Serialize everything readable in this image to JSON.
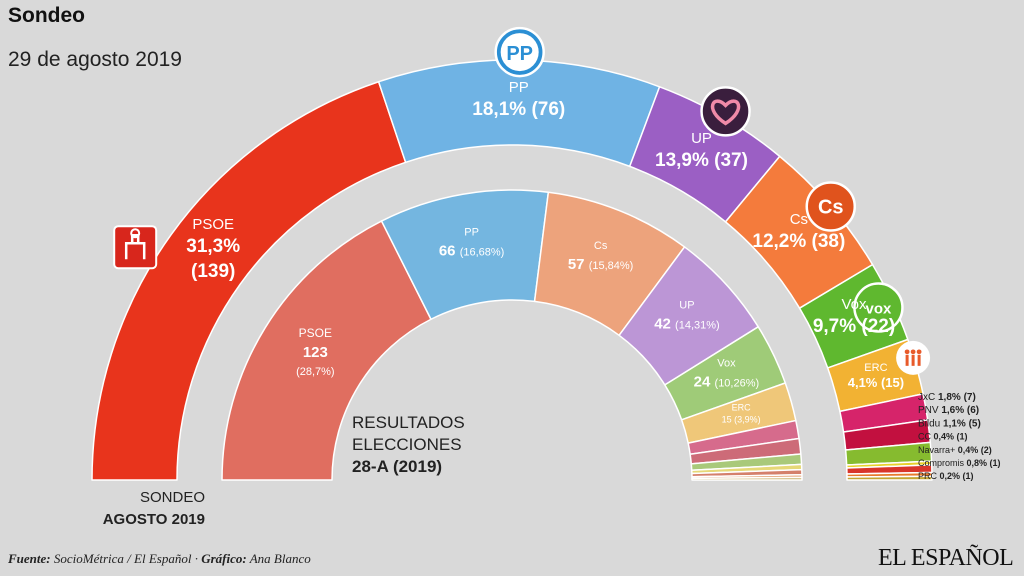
{
  "header": {
    "title": "Sondeo",
    "date": "29 de agosto 2019"
  },
  "labels": {
    "results_line1": "RESULTADOS",
    "results_line2": "ELECCIONES",
    "results_line3": "28-A (2019)",
    "sondeo_line1": "SONDEO",
    "sondeo_line2": "AGOSTO 2019"
  },
  "footer": {
    "source_label": "Fuente:",
    "source": "SocioMétrica / El Español",
    "separator": " · ",
    "chart_label": "Gráfico:",
    "author": "Ana Blanco",
    "brand": "EL ESPAÑOL"
  },
  "colors": {
    "PSOE": "#e8341c",
    "PP": "#6fb3e4",
    "UP": "#9b5fc4",
    "Cs": "#f47b3c",
    "Vox": "#5fb82f",
    "ERC": "#f2b233",
    "JxC": "#d6246a",
    "PNV": "#c2103f",
    "Bildu": "#86bb2f",
    "CC": "#e8d12a",
    "Navarra+": "#d8352a",
    "Compromis": "#e77a2c",
    "PRC": "#c3a532",
    "inner_PSOE": "#e06e60",
    "inner_PP": "#74b6e0",
    "inner_Cs": "#eda37c",
    "inner_UP": "#bc96d6",
    "inner_Vox": "#9fcb78",
    "inner_ERC": "#efc779",
    "inner_JxC": "#d66b8c",
    "inner_PNV": "#cd6b78",
    "inner_Bildu": "#a9c97a",
    "inner_CC": "#e6d877",
    "inner_Navarra+": "#d4806b",
    "inner_Compromis": "#e29e6e",
    "inner_PRC": "#c9b46f",
    "background": "#d9d9d9"
  },
  "chart_data": [
    {
      "type": "parliament-semicircle",
      "title": "Sondeo agosto 2019",
      "total_seats": 350,
      "series": [
        {
          "party": "PSOE",
          "label": "PSOE",
          "percent": "31,3%",
          "seats": 139,
          "seats_text": "(139)"
        },
        {
          "party": "PP",
          "label": "PP",
          "percent": "18,1%",
          "seats": 76,
          "seats_text": "(76)"
        },
        {
          "party": "UP",
          "label": "UP",
          "percent": "13,9%",
          "seats": 37,
          "seats_text": "(37)"
        },
        {
          "party": "Cs",
          "label": "Cs",
          "percent": "12,2%",
          "seats": 38,
          "seats_text": "(38)"
        },
        {
          "party": "Vox",
          "label": "Vox",
          "percent": "9,7%",
          "seats": 22,
          "seats_text": "(22)"
        },
        {
          "party": "ERC",
          "label": "ERC",
          "percent": "4,1%",
          "seats": 15,
          "seats_text": "(15)"
        },
        {
          "party": "JxC",
          "label": "JxC",
          "percent": "1,8%",
          "seats": 7,
          "seats_text": "(7)"
        },
        {
          "party": "PNV",
          "label": "PNV",
          "percent": "1,6%",
          "seats": 6,
          "seats_text": "(6)"
        },
        {
          "party": "Bildu",
          "label": "Bildu",
          "percent": "1,1%",
          "seats": 5,
          "seats_text": "(5)"
        },
        {
          "party": "CC",
          "label": "CC",
          "percent": "0,4%",
          "seats": 1,
          "seats_text": "(1)"
        },
        {
          "party": "Navarra+",
          "label": "Navarra+",
          "percent": "0,4%",
          "seats": 2,
          "seats_text": "(2)"
        },
        {
          "party": "Compromis",
          "label": "Compromis",
          "percent": "0,8%",
          "seats": 1,
          "seats_text": "(1)"
        },
        {
          "party": "PRC",
          "label": "PRC",
          "percent": "0,2%",
          "seats": 1,
          "seats_text": "(1)"
        }
      ]
    },
    {
      "type": "parliament-semicircle",
      "title": "Resultados elecciones 28-A (2019)",
      "total_seats": 350,
      "series": [
        {
          "party": "PSOE",
          "label": "PSOE",
          "seats": 123,
          "percent": "28,7%",
          "percent_text": "(28,7%)"
        },
        {
          "party": "PP",
          "label": "PP",
          "seats": 66,
          "percent": "16,68%",
          "percent_text": "(16,68%)"
        },
        {
          "party": "Cs",
          "label": "Cs",
          "seats": 57,
          "percent": "15,84%",
          "percent_text": "(15,84%)"
        },
        {
          "party": "UP",
          "label": "UP",
          "seats": 42,
          "percent": "14,31%",
          "percent_text": "(14,31%)"
        },
        {
          "party": "Vox",
          "label": "Vox",
          "seats": 24,
          "percent": "10,26%",
          "percent_text": "(10,26%)"
        },
        {
          "party": "ERC",
          "label": "ERC",
          "seats": 15,
          "percent": "3,9%",
          "percent_text": "(3,9%)"
        },
        {
          "party": "JxC",
          "label": "JxC",
          "seats": 7
        },
        {
          "party": "PNV",
          "label": "PNV",
          "seats": 6
        },
        {
          "party": "Bildu",
          "label": "Bildu",
          "seats": 4
        },
        {
          "party": "CC",
          "label": "CC",
          "seats": 2
        },
        {
          "party": "Navarra+",
          "label": "Navarra+",
          "seats": 2
        },
        {
          "party": "Compromis",
          "label": "Compromis",
          "seats": 1
        },
        {
          "party": "PRC",
          "label": "PRC",
          "seats": 1
        }
      ]
    }
  ]
}
